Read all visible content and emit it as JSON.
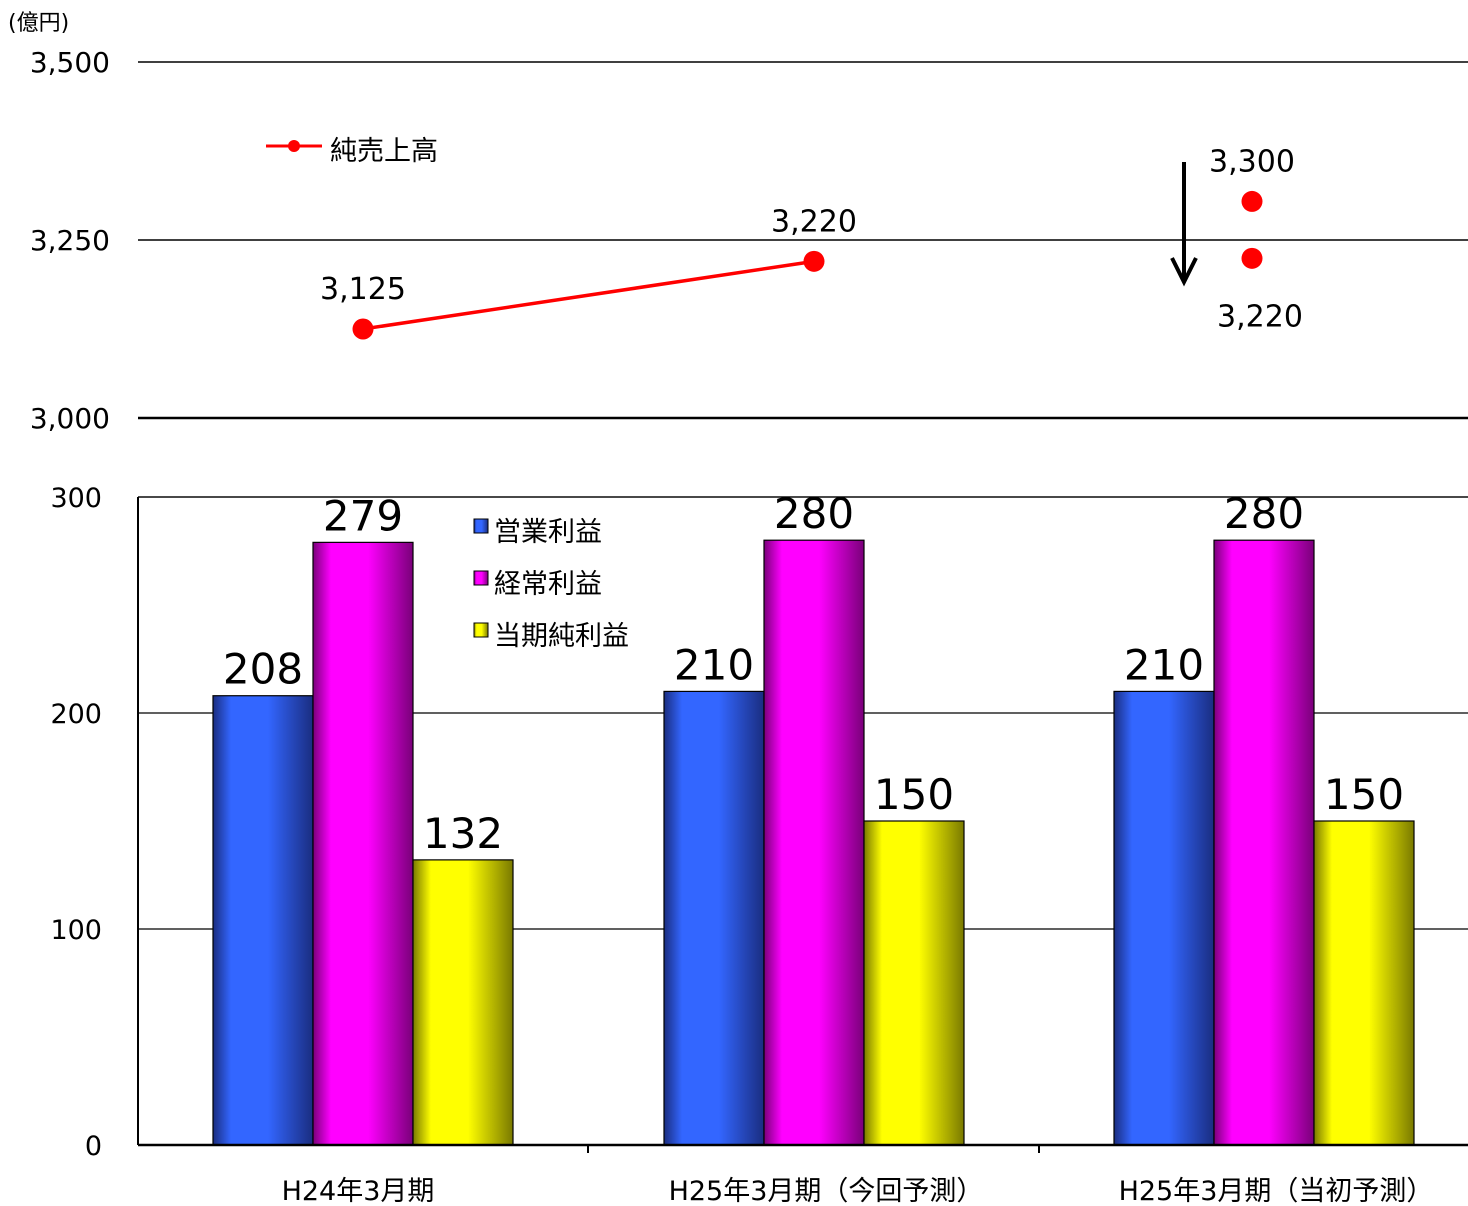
{
  "chart_data": [
    {
      "type": "line",
      "unit": "(億円)",
      "ylim": [
        3000,
        3500
      ],
      "yticks": [
        "3,000",
        "3,250",
        "3,500"
      ],
      "grid": true,
      "legend": {
        "position": "top-left"
      },
      "series": [
        {
          "name": "純売上高",
          "color": "#ff0000",
          "points": [
            {
              "x": 0,
              "label": "3,125",
              "y": 3125
            },
            {
              "x": 1,
              "label": "3,220",
              "y": 3220
            }
          ]
        }
      ],
      "extra_points": [
        {
          "x": 2,
          "y": 3300,
          "label": "3,300"
        },
        {
          "x": 2,
          "y": 3220,
          "label": "3,220"
        }
      ],
      "arrow": {
        "direction": "down",
        "from": 3300,
        "to": 3220
      }
    },
    {
      "type": "bar",
      "ylim": [
        0,
        300
      ],
      "yticks": [
        "0",
        "100",
        "200",
        "300"
      ],
      "grid": true,
      "legend": {
        "position": "top-center"
      },
      "categories": [
        "H24年3月期",
        "H25年3月期（今回予測）",
        "H25年3月期（当初予測）"
      ],
      "series": [
        {
          "name": "営業利益",
          "color": "#3366ff",
          "values": [
            208,
            210,
            210
          ]
        },
        {
          "name": "経常利益",
          "color": "#ff00ff",
          "values": [
            279,
            280,
            280
          ]
        },
        {
          "name": "当期純利益",
          "color": "#ffff00",
          "values": [
            132,
            150,
            150
          ]
        }
      ]
    }
  ]
}
